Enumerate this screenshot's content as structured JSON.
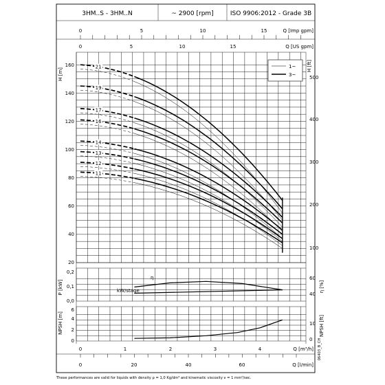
{
  "header": {
    "model": "3HM..S - 3HM..N",
    "speed": "~ 2900 [rpm]",
    "standard": "ISO 9906:2012 - Grade 3B"
  },
  "axes": {
    "imp_gpm": {
      "label": "Q [Imp gpm]",
      "ticks": [
        "0",
        "5",
        "10",
        "15"
      ]
    },
    "us_gpm": {
      "label": "Q [US gpm]",
      "ticks": [
        "0",
        "5",
        "10",
        "15"
      ]
    },
    "h_m": {
      "label": "H [m]",
      "ticks": [
        "20",
        "40",
        "60",
        "80",
        "100",
        "120",
        "140",
        "160"
      ]
    },
    "h_ft": {
      "label": "H [ft]",
      "ticks": [
        "100",
        "200",
        "300",
        "400",
        "500"
      ]
    },
    "p_kw": {
      "label": "P [kW]",
      "ticks": [
        "0,0",
        "0,1",
        "0,2"
      ]
    },
    "eta": {
      "label": "η [%]",
      "ticks": [
        "40",
        "60"
      ]
    },
    "npsh_m": {
      "label": "NPSH [m]",
      "ticks": [
        "0",
        "2",
        "4",
        "6"
      ]
    },
    "npsh_ft": {
      "label": "NPSH [ft]",
      "ticks": [
        "0",
        "10"
      ]
    },
    "q_m3h": {
      "label": "Q [m³/h]",
      "ticks": [
        "0",
        "1",
        "2",
        "3",
        "4"
      ]
    },
    "q_lmin": {
      "label": "Q [l/min]",
      "ticks": [
        "0",
        "20",
        "40",
        "60"
      ]
    }
  },
  "legend": {
    "items": [
      "1~",
      "3~"
    ]
  },
  "labels": {
    "stage_power": "kW/stage",
    "eta_symbol": "η",
    "footnote": "These performances are valid for liquids with density ρ = 1,0 Kg/dm³ and kinematic viscosity ν = 1 mm²/sec.",
    "code": "06403_B_CH"
  },
  "chart_data": [
    {
      "type": "line",
      "title": "",
      "xlabel": "Q [m³/h]",
      "ylabel": "H [m]",
      "xlim": [
        0,
        4.8
      ],
      "ylim": [
        20,
        165
      ],
      "stages": [
        21,
        19,
        17,
        16,
        14,
        13,
        12,
        11
      ],
      "shutoff_head": [
        160,
        145,
        129,
        121,
        106,
        98.5,
        91,
        84
      ],
      "end_head_3ph": [
        64,
        58,
        52,
        48,
        43,
        40,
        37,
        34
      ],
      "end_head_1ph": [
        55,
        50,
        45,
        42,
        37,
        35,
        32,
        30
      ],
      "end_q": 4.5,
      "series": [
        {
          "name": "3~"
        },
        {
          "name": "1~"
        }
      ]
    },
    {
      "type": "line",
      "xlabel": "Q [m³/h]",
      "ylabel": "P [kW]",
      "ylim": [
        0,
        0.25
      ],
      "series": [
        {
          "name": "kW/stage",
          "x": [
            1.2,
            4.5
          ],
          "y": [
            0.07,
            0.1
          ]
        },
        {
          "name": "η",
          "x": [
            1.2,
            2.0,
            2.8,
            3.6,
            4.5
          ],
          "y": [
            50,
            56,
            58,
            55,
            46
          ]
        }
      ]
    },
    {
      "type": "line",
      "xlabel": "Q [m³/h]",
      "ylabel": "NPSH [m]",
      "ylim": [
        0,
        6
      ],
      "series": [
        {
          "name": "NPSH",
          "x": [
            1.2,
            2.0,
            2.8,
            3.5,
            4.0,
            4.5
          ],
          "y": [
            0.5,
            0.6,
            1.0,
            1.6,
            2.5,
            4.0
          ]
        }
      ]
    }
  ]
}
